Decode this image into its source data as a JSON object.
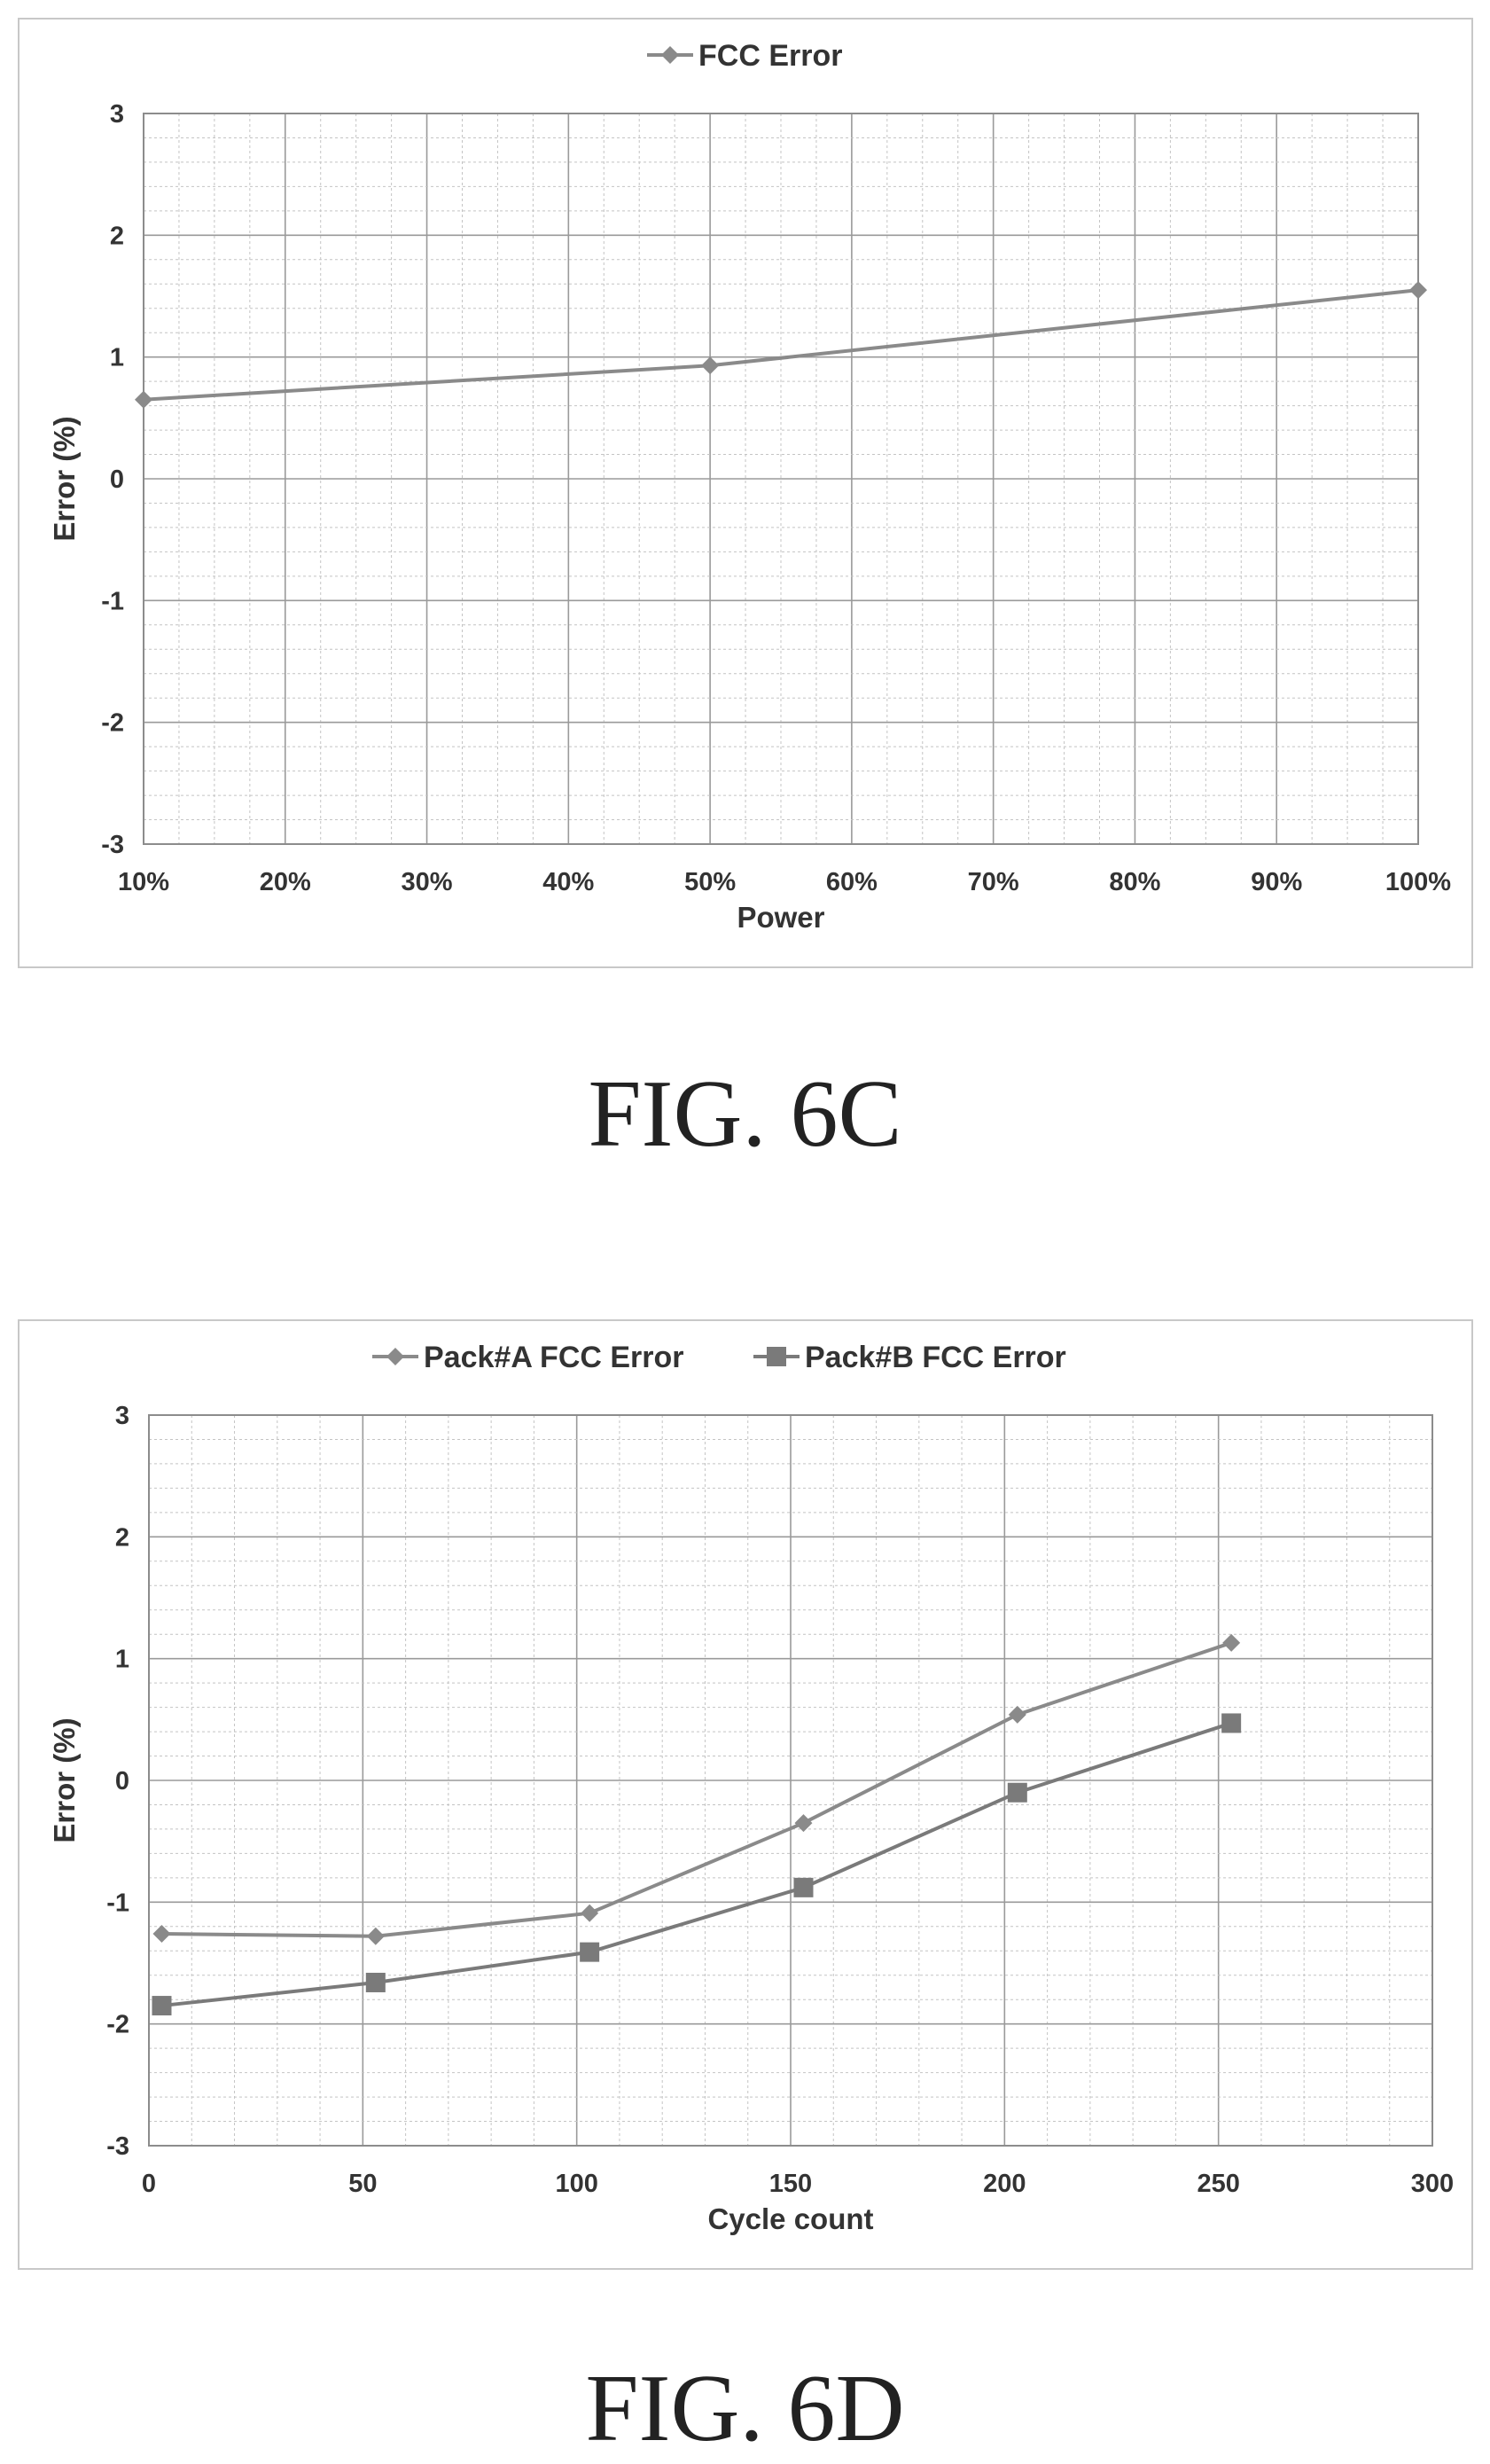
{
  "figures": [
    {
      "caption": "FIG. 6C"
    },
    {
      "caption": "FIG. 6D"
    }
  ],
  "chart_data": [
    {
      "type": "line",
      "xlabel": "Power",
      "ylabel": "Error (%)",
      "x": [
        10,
        50,
        100
      ],
      "xlim": [
        10,
        100
      ],
      "ylim": [
        -3,
        3
      ],
      "x_ticks": [
        "10%",
        "20%",
        "30%",
        "40%",
        "50%",
        "60%",
        "70%",
        "80%",
        "90%",
        "100%"
      ],
      "y_ticks": [
        "3",
        "2",
        "1",
        "0",
        "-1",
        "-2",
        "-3"
      ],
      "series": [
        {
          "name": "FCC Error",
          "marker": "diamond",
          "color": "#8a8a8a",
          "values": [
            0.65,
            0.93,
            1.55
          ]
        }
      ],
      "legend": "top-center",
      "grid": true
    },
    {
      "type": "line",
      "xlabel": "Cycle count",
      "ylabel": "Error (%)",
      "x": [
        3,
        53,
        103,
        153,
        203,
        253
      ],
      "xlim": [
        0,
        300
      ],
      "ylim": [
        -3,
        3
      ],
      "x_ticks": [
        "0",
        "50",
        "100",
        "150",
        "200",
        "250",
        "300"
      ],
      "y_ticks": [
        "3",
        "2",
        "1",
        "0",
        "-1",
        "-2",
        "-3"
      ],
      "series": [
        {
          "name": "Pack#A FCC Error",
          "marker": "diamond",
          "color": "#8a8a8a",
          "values": [
            -1.26,
            -1.28,
            -1.09,
            -0.35,
            0.54,
            1.13
          ]
        },
        {
          "name": "Pack#B FCC Error",
          "marker": "square",
          "color": "#7a7a7a",
          "values": [
            -1.85,
            -1.66,
            -1.41,
            -0.88,
            -0.1,
            0.47
          ]
        }
      ],
      "legend": "top-center",
      "grid": true
    }
  ]
}
